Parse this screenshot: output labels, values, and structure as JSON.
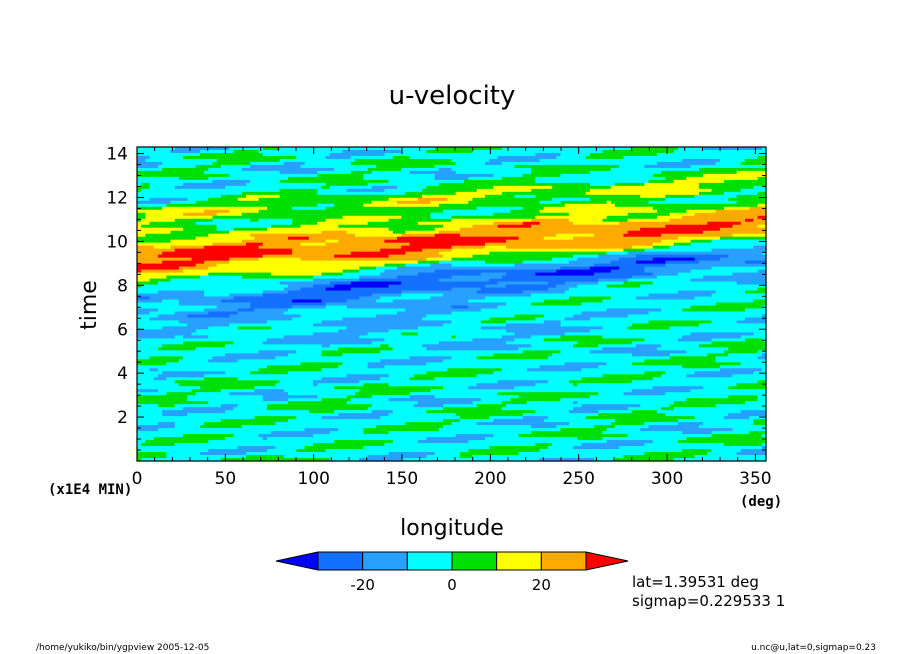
{
  "chart_data": {
    "type": "heatmap",
    "title": "u-velocity",
    "xlabel": "longitude",
    "x_units": "(deg)",
    "ylabel": "time",
    "y_units": "(x1E4 MIN)",
    "xlim": [
      0,
      356
    ],
    "ylim": [
      0,
      14.3
    ],
    "x_ticks": [
      0,
      50,
      100,
      150,
      200,
      250,
      300,
      350
    ],
    "y_ticks": [
      2,
      4,
      6,
      8,
      10,
      12,
      14
    ],
    "x_tick_labels": [
      "0",
      "50",
      "100",
      "150",
      "200",
      "250",
      "300",
      "350"
    ],
    "y_tick_labels": [
      "2",
      "4",
      "6",
      "8",
      "10",
      "12",
      "14"
    ],
    "colorbar": {
      "levels": [
        -30,
        -20,
        -10,
        0,
        10,
        20,
        30
      ],
      "colors": [
        "#0000ff",
        "#1470ff",
        "#28a0ff",
        "#00ffff",
        "#00e000",
        "#ffff00",
        "#ffaa00",
        "#ff0000"
      ],
      "tick_values": [
        -20,
        0,
        20
      ],
      "tick_labels": [
        "-20",
        "0",
        "20"
      ]
    },
    "grid": false
  },
  "annotations": {
    "lat": "lat=1.39531 deg",
    "sigmap": "sigmap=0.229533 1",
    "footer_left": "/home/yukiko/bin/ygpview  2005-12-05",
    "footer_right": "u.nc@u,lat=0,sigmap=0.23"
  }
}
